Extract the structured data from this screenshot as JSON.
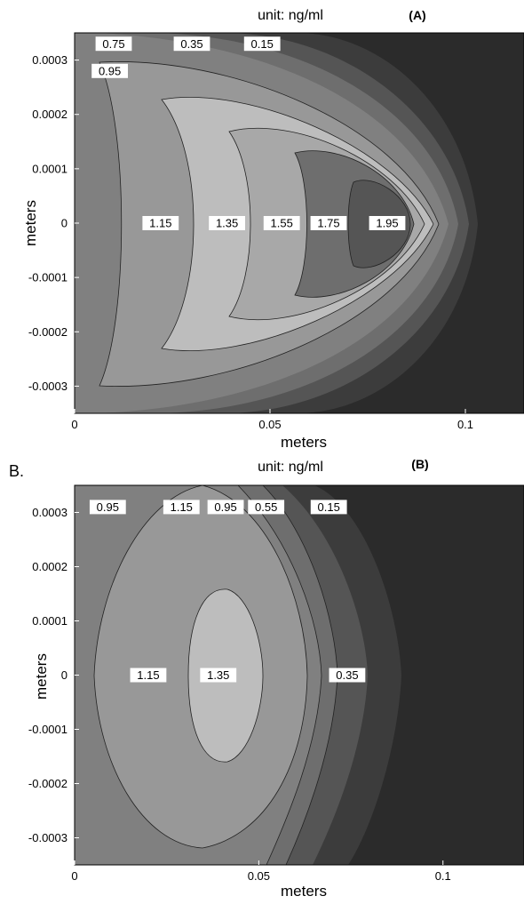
{
  "chart_data": [
    {
      "type": "contour",
      "title": "unit: ng/ml",
      "panel_tag": "(A)",
      "xlabel": "meters",
      "ylabel": "meters",
      "xlim": [
        0,
        0.115
      ],
      "ylim": [
        -0.00035,
        0.00035
      ],
      "x_ticks": [
        "0",
        "0.05",
        "0.1"
      ],
      "y_ticks": [
        "0.0003",
        "0.0002",
        "0.0001",
        "0",
        "-0.0001",
        "-0.0002",
        "-0.0003"
      ],
      "levels": [
        0.15,
        0.35,
        0.55,
        0.75,
        0.95,
        1.15,
        1.35,
        1.55,
        1.75,
        1.95
      ],
      "contour_labels": [
        {
          "text": "0.75",
          "x": 0.01,
          "y": 0.00033
        },
        {
          "text": "0.35",
          "x": 0.03,
          "y": 0.00033
        },
        {
          "text": "0.15",
          "x": 0.048,
          "y": 0.00033
        },
        {
          "text": "0.95",
          "x": 0.009,
          "y": 0.00028
        },
        {
          "text": "1.15",
          "x": 0.022,
          "y": 0.0
        },
        {
          "text": "1.35",
          "x": 0.039,
          "y": 0.0
        },
        {
          "text": "1.55",
          "x": 0.053,
          "y": 0.0
        },
        {
          "text": "1.75",
          "x": 0.065,
          "y": 0.0
        },
        {
          "text": "1.95",
          "x": 0.08,
          "y": 0.0
        }
      ]
    },
    {
      "type": "contour",
      "panel_label": "B.",
      "title": "unit: ng/ml",
      "panel_tag": "(B)",
      "xlabel": "meters",
      "ylabel": "meters",
      "xlim": [
        0,
        0.122
      ],
      "ylim": [
        -0.00035,
        0.00035
      ],
      "x_ticks": [
        "0",
        "0.05",
        "0.1"
      ],
      "y_ticks": [
        "0.0003",
        "0.0002",
        "0.0001",
        "0",
        "-0.0001",
        "-0.0002",
        "-0.0003"
      ],
      "levels": [
        0.15,
        0.35,
        0.55,
        0.75,
        0.95,
        1.15,
        1.35
      ],
      "contour_labels": [
        {
          "text": "0.95",
          "x": 0.009,
          "y": 0.00031
        },
        {
          "text": "1.15",
          "x": 0.029,
          "y": 0.00031
        },
        {
          "text": "0.95",
          "x": 0.041,
          "y": 0.00031
        },
        {
          "text": "0.55",
          "x": 0.052,
          "y": 0.00031
        },
        {
          "text": "0.15",
          "x": 0.069,
          "y": 0.00031
        },
        {
          "text": "1.15",
          "x": 0.02,
          "y": 0.0
        },
        {
          "text": "1.35",
          "x": 0.039,
          "y": 0.0
        },
        {
          "text": "0.35",
          "x": 0.074,
          "y": 0.0
        }
      ]
    }
  ],
  "colors": {
    "band_dark": "#2b2b2b",
    "band_1": "#3c3c3c",
    "band_2": "#555555",
    "band_3": "#6e6e6e",
    "band_4": "#808080",
    "band_5": "#989898",
    "band_6": "#a8a8a8",
    "band_7": "#bdbdbd",
    "band_8": "#a8a8a8",
    "band_9": "#6e6e6e",
    "band_10": "#555555"
  }
}
